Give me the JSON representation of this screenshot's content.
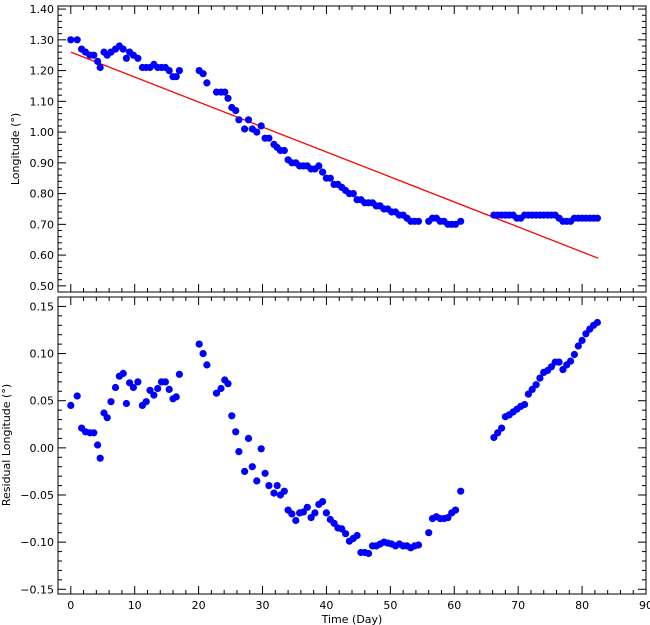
{
  "chart_data": [
    {
      "type": "scatter",
      "title": "",
      "xlabel": "",
      "ylabel": "Longitude (°)",
      "xlim": [
        -2,
        90
      ],
      "ylim": [
        0.48,
        1.41
      ],
      "x_ticks": [
        0,
        10,
        20,
        30,
        40,
        50,
        60,
        70,
        80,
        90
      ],
      "x_tick_labels": [
        "",
        "",
        "",
        "",
        "",
        "",
        "",
        "",
        "",
        ""
      ],
      "y_ticks": [
        0.5,
        0.6,
        0.7,
        0.8,
        0.9,
        1.0,
        1.1,
        1.2,
        1.3,
        1.4
      ],
      "y_tick_labels": [
        "0.50",
        "0.60",
        "0.70",
        "0.80",
        "0.90",
        "1.00",
        "1.10",
        "1.20",
        "1.30",
        "1.40"
      ],
      "grid": false,
      "series": [
        {
          "name": "",
          "kind": "points",
          "color": "#0000ff",
          "points": [
            [
              0,
              1.3
            ],
            [
              1,
              1.3
            ],
            [
              1.7,
              1.27
            ],
            [
              2.3,
              1.26
            ],
            [
              3,
              1.25
            ],
            [
              3.6,
              1.25
            ],
            [
              4.2,
              1.23
            ],
            [
              4.6,
              1.21
            ],
            [
              5.2,
              1.26
            ],
            [
              5.7,
              1.25
            ],
            [
              6.3,
              1.26
            ],
            [
              7,
              1.27
            ],
            [
              7.6,
              1.28
            ],
            [
              8.2,
              1.27
            ],
            [
              8.7,
              1.24
            ],
            [
              9.2,
              1.26
            ],
            [
              9.8,
              1.25
            ],
            [
              10.5,
              1.24
            ],
            [
              11.2,
              1.21
            ],
            [
              11.8,
              1.21
            ],
            [
              12.4,
              1.21
            ],
            [
              13,
              1.22
            ],
            [
              13.6,
              1.21
            ],
            [
              14.2,
              1.21
            ],
            [
              14.8,
              1.21
            ],
            [
              15.4,
              1.2
            ],
            [
              16,
              1.18
            ],
            [
              16.5,
              1.18
            ],
            [
              17,
              1.2
            ],
            [
              20.1,
              1.2
            ],
            [
              20.7,
              1.19
            ],
            [
              21.3,
              1.16
            ],
            [
              22.8,
              1.13
            ],
            [
              23.5,
              1.13
            ],
            [
              24.1,
              1.13
            ],
            [
              24.6,
              1.11
            ],
            [
              25.2,
              1.08
            ],
            [
              25.8,
              1.07
            ],
            [
              26.3,
              1.04
            ],
            [
              27.2,
              1.01
            ],
            [
              27.8,
              1.04
            ],
            [
              28.4,
              1.01
            ],
            [
              29.1,
              1.0
            ],
            [
              29.8,
              1.02
            ],
            [
              30.4,
              0.98
            ],
            [
              31,
              0.98
            ],
            [
              31.8,
              0.96
            ],
            [
              32.3,
              0.95
            ],
            [
              32.8,
              0.94
            ],
            [
              33.4,
              0.94
            ],
            [
              34,
              0.91
            ],
            [
              34.6,
              0.9
            ],
            [
              35.2,
              0.9
            ],
            [
              35.8,
              0.89
            ],
            [
              36.4,
              0.89
            ],
            [
              37,
              0.89
            ],
            [
              37.6,
              0.88
            ],
            [
              38.2,
              0.88
            ],
            [
              38.8,
              0.89
            ],
            [
              39.4,
              0.87
            ],
            [
              40,
              0.85
            ],
            [
              40.6,
              0.85
            ],
            [
              41.2,
              0.83
            ],
            [
              41.8,
              0.83
            ],
            [
              42.4,
              0.82
            ],
            [
              43,
              0.81
            ],
            [
              43.6,
              0.8
            ],
            [
              44.2,
              0.8
            ],
            [
              44.8,
              0.78
            ],
            [
              45.4,
              0.78
            ],
            [
              46,
              0.77
            ],
            [
              46.6,
              0.77
            ],
            [
              47.2,
              0.77
            ],
            [
              47.8,
              0.76
            ],
            [
              48.4,
              0.76
            ],
            [
              49,
              0.75
            ],
            [
              49.6,
              0.75
            ],
            [
              50.2,
              0.74
            ],
            [
              50.8,
              0.74
            ],
            [
              51.4,
              0.73
            ],
            [
              52,
              0.73
            ],
            [
              52.6,
              0.72
            ],
            [
              53.2,
              0.71
            ],
            [
              53.8,
              0.71
            ],
            [
              54.4,
              0.71
            ],
            [
              56,
              0.71
            ],
            [
              56.6,
              0.72
            ],
            [
              57.2,
              0.72
            ],
            [
              57.8,
              0.71
            ],
            [
              58.4,
              0.71
            ],
            [
              59,
              0.7
            ],
            [
              59.6,
              0.7
            ],
            [
              60.2,
              0.7
            ],
            [
              61,
              0.71
            ],
            [
              66.2,
              0.73
            ],
            [
              66.8,
              0.73
            ],
            [
              67.4,
              0.73
            ],
            [
              68,
              0.73
            ],
            [
              68.6,
              0.73
            ],
            [
              69.2,
              0.73
            ],
            [
              69.8,
              0.72
            ],
            [
              70.4,
              0.72
            ],
            [
              71,
              0.73
            ],
            [
              71.6,
              0.73
            ],
            [
              72.2,
              0.73
            ],
            [
              72.8,
              0.73
            ],
            [
              73.4,
              0.73
            ],
            [
              74,
              0.73
            ],
            [
              74.6,
              0.73
            ],
            [
              75.2,
              0.73
            ],
            [
              75.8,
              0.73
            ],
            [
              76.4,
              0.72
            ],
            [
              77,
              0.71
            ],
            [
              77.6,
              0.71
            ],
            [
              78.2,
              0.71
            ],
            [
              78.8,
              0.72
            ],
            [
              79.4,
              0.72
            ],
            [
              80,
              0.72
            ],
            [
              80.6,
              0.72
            ],
            [
              81.2,
              0.72
            ],
            [
              81.8,
              0.72
            ],
            [
              82.4,
              0.72
            ]
          ]
        },
        {
          "name": "",
          "kind": "line",
          "color": "#ff0000",
          "points": [
            [
              0,
              1.26
            ],
            [
              82.5,
              0.59
            ]
          ]
        }
      ]
    },
    {
      "type": "scatter",
      "title": "",
      "xlabel": "Time (Day)",
      "ylabel": "Residual Longitude (°)",
      "xlim": [
        -2,
        90
      ],
      "ylim": [
        -0.155,
        0.16
      ],
      "x_ticks": [
        0,
        10,
        20,
        30,
        40,
        50,
        60,
        70,
        80,
        90
      ],
      "x_tick_labels": [
        "0",
        "10",
        "20",
        "30",
        "40",
        "50",
        "60",
        "70",
        "80",
        "90"
      ],
      "y_ticks": [
        -0.15,
        -0.1,
        -0.05,
        0.0,
        0.05,
        0.1,
        0.15
      ],
      "y_tick_labels": [
        "−0.15",
        "−0.10",
        "−0.05",
        "0.00",
        "0.05",
        "0.10",
        "0.15"
      ],
      "grid": false,
      "series": [
        {
          "name": "",
          "kind": "points",
          "color": "#0000ff",
          "points": [
            [
              0,
              0.045
            ],
            [
              1,
              0.055
            ],
            [
              1.7,
              0.021
            ],
            [
              2.3,
              0.017
            ],
            [
              3,
              0.016
            ],
            [
              3.6,
              0.016
            ],
            [
              4.2,
              0.003
            ],
            [
              4.6,
              -0.011
            ],
            [
              5.2,
              0.037
            ],
            [
              5.7,
              0.032
            ],
            [
              6.3,
              0.049
            ],
            [
              7,
              0.064
            ],
            [
              7.6,
              0.076
            ],
            [
              8.2,
              0.079
            ],
            [
              8.7,
              0.047
            ],
            [
              9.2,
              0.069
            ],
            [
              9.8,
              0.064
            ],
            [
              10.5,
              0.07
            ],
            [
              11.2,
              0.045
            ],
            [
              11.8,
              0.049
            ],
            [
              12.4,
              0.061
            ],
            [
              13,
              0.056
            ],
            [
              13.6,
              0.063
            ],
            [
              14.2,
              0.07
            ],
            [
              14.8,
              0.07
            ],
            [
              15.4,
              0.062
            ],
            [
              16,
              0.052
            ],
            [
              16.5,
              0.054
            ],
            [
              17,
              0.078
            ],
            [
              20.1,
              0.11
            ],
            [
              20.7,
              0.1
            ],
            [
              21.3,
              0.088
            ],
            [
              22.8,
              0.058
            ],
            [
              23.5,
              0.063
            ],
            [
              24.1,
              0.072
            ],
            [
              24.6,
              0.068
            ],
            [
              25.2,
              0.034
            ],
            [
              25.8,
              0.017
            ],
            [
              26.3,
              -0.004
            ],
            [
              27.2,
              -0.025
            ],
            [
              27.8,
              0.01
            ],
            [
              28.4,
              -0.02
            ],
            [
              29.1,
              -0.035
            ],
            [
              29.8,
              -0.001
            ],
            [
              30.4,
              -0.027
            ],
            [
              31,
              -0.04
            ],
            [
              31.8,
              -0.048
            ],
            [
              32.3,
              -0.04
            ],
            [
              32.8,
              -0.05
            ],
            [
              33.4,
              -0.046
            ],
            [
              34,
              -0.066
            ],
            [
              34.6,
              -0.07
            ],
            [
              35.2,
              -0.077
            ],
            [
              35.8,
              -0.069
            ],
            [
              36.4,
              -0.068
            ],
            [
              37,
              -0.063
            ],
            [
              37.6,
              -0.074
            ],
            [
              38.2,
              -0.069
            ],
            [
              38.8,
              -0.06
            ],
            [
              39.4,
              -0.057
            ],
            [
              40,
              -0.069
            ],
            [
              40.6,
              -0.076
            ],
            [
              41.2,
              -0.08
            ],
            [
              41.8,
              -0.085
            ],
            [
              42.4,
              -0.086
            ],
            [
              43,
              -0.091
            ],
            [
              43.6,
              -0.099
            ],
            [
              44.2,
              -0.096
            ],
            [
              44.8,
              -0.093
            ],
            [
              45.4,
              -0.111
            ],
            [
              46,
              -0.111
            ],
            [
              46.6,
              -0.112
            ],
            [
              47.2,
              -0.104
            ],
            [
              47.8,
              -0.104
            ],
            [
              48.4,
              -0.102
            ],
            [
              49,
              -0.1
            ],
            [
              49.6,
              -0.101
            ],
            [
              50.2,
              -0.102
            ],
            [
              50.8,
              -0.104
            ],
            [
              51.4,
              -0.102
            ],
            [
              52,
              -0.104
            ],
            [
              52.6,
              -0.104
            ],
            [
              53.2,
              -0.106
            ],
            [
              53.8,
              -0.104
            ],
            [
              54.4,
              -0.103
            ],
            [
              56,
              -0.09
            ],
            [
              56.6,
              -0.075
            ],
            [
              57.2,
              -0.073
            ],
            [
              57.8,
              -0.075
            ],
            [
              58.4,
              -0.075
            ],
            [
              59,
              -0.074
            ],
            [
              59.6,
              -0.069
            ],
            [
              60.2,
              -0.066
            ],
            [
              61,
              -0.046
            ],
            [
              66.2,
              0.011
            ],
            [
              66.8,
              0.016
            ],
            [
              67.4,
              0.021
            ],
            [
              68,
              0.033
            ],
            [
              68.6,
              0.035
            ],
            [
              69.2,
              0.038
            ],
            [
              69.8,
              0.041
            ],
            [
              70.4,
              0.044
            ],
            [
              71,
              0.046
            ],
            [
              71.6,
              0.057
            ],
            [
              72.2,
              0.062
            ],
            [
              72.8,
              0.067
            ],
            [
              73.4,
              0.074
            ],
            [
              74,
              0.08
            ],
            [
              74.6,
              0.082
            ],
            [
              75.2,
              0.086
            ],
            [
              75.8,
              0.091
            ],
            [
              76.4,
              0.091
            ],
            [
              77,
              0.083
            ],
            [
              77.6,
              0.088
            ],
            [
              78.2,
              0.092
            ],
            [
              78.8,
              0.099
            ],
            [
              79.4,
              0.108
            ],
            [
              80,
              0.114
            ],
            [
              80.6,
              0.121
            ],
            [
              81.2,
              0.126
            ],
            [
              81.8,
              0.13
            ],
            [
              82.4,
              0.133
            ]
          ]
        }
      ]
    }
  ]
}
